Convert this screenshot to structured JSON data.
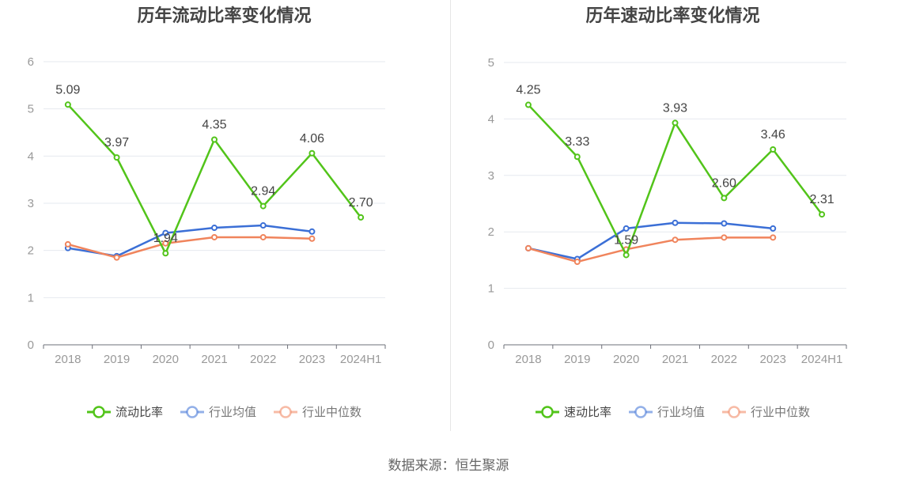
{
  "source_label": "数据来源：恒生聚源",
  "chart_data": [
    {
      "type": "line",
      "title": "历年流动比率变化情况",
      "categories": [
        "2018",
        "2019",
        "2020",
        "2021",
        "2022",
        "2023",
        "2024H1"
      ],
      "ylim": [
        0,
        6
      ],
      "yticks": [
        0,
        1,
        2,
        3,
        4,
        5,
        6
      ],
      "grid": true,
      "legend_position": "bottom",
      "series": [
        {
          "name": "流动比率",
          "color": "#52c41a",
          "labeled": true,
          "values": [
            5.09,
            3.97,
            1.94,
            4.35,
            2.94,
            4.06,
            2.7
          ],
          "labels": [
            "5.09",
            "3.97",
            "1.94",
            "4.35",
            "2.94",
            "4.06",
            "2.70"
          ]
        },
        {
          "name": "行业均值",
          "color": "#3b6fd6",
          "labeled": false,
          "values": [
            2.05,
            1.88,
            2.37,
            2.48,
            2.53,
            2.4,
            null
          ]
        },
        {
          "name": "行业中位数",
          "color": "#f0845c",
          "labeled": false,
          "values": [
            2.13,
            1.85,
            2.15,
            2.28,
            2.28,
            2.25,
            null
          ]
        }
      ]
    },
    {
      "type": "line",
      "title": "历年速动比率变化情况",
      "categories": [
        "2018",
        "2019",
        "2020",
        "2021",
        "2022",
        "2023",
        "2024H1"
      ],
      "ylim": [
        0,
        5
      ],
      "yticks": [
        0,
        1,
        2,
        3,
        4,
        5
      ],
      "grid": true,
      "legend_position": "bottom",
      "series": [
        {
          "name": "速动比率",
          "color": "#52c41a",
          "labeled": true,
          "values": [
            4.25,
            3.33,
            1.59,
            3.93,
            2.6,
            3.46,
            2.31
          ],
          "labels": [
            "4.25",
            "3.33",
            "1.59",
            "3.93",
            "2.60",
            "3.46",
            "2.31"
          ]
        },
        {
          "name": "行业均值",
          "color": "#3b6fd6",
          "labeled": false,
          "values": [
            1.71,
            1.52,
            2.06,
            2.16,
            2.15,
            2.06,
            null
          ]
        },
        {
          "name": "行业中位数",
          "color": "#f0845c",
          "labeled": false,
          "values": [
            1.71,
            1.47,
            1.69,
            1.86,
            1.9,
            1.9,
            null
          ]
        }
      ]
    }
  ]
}
